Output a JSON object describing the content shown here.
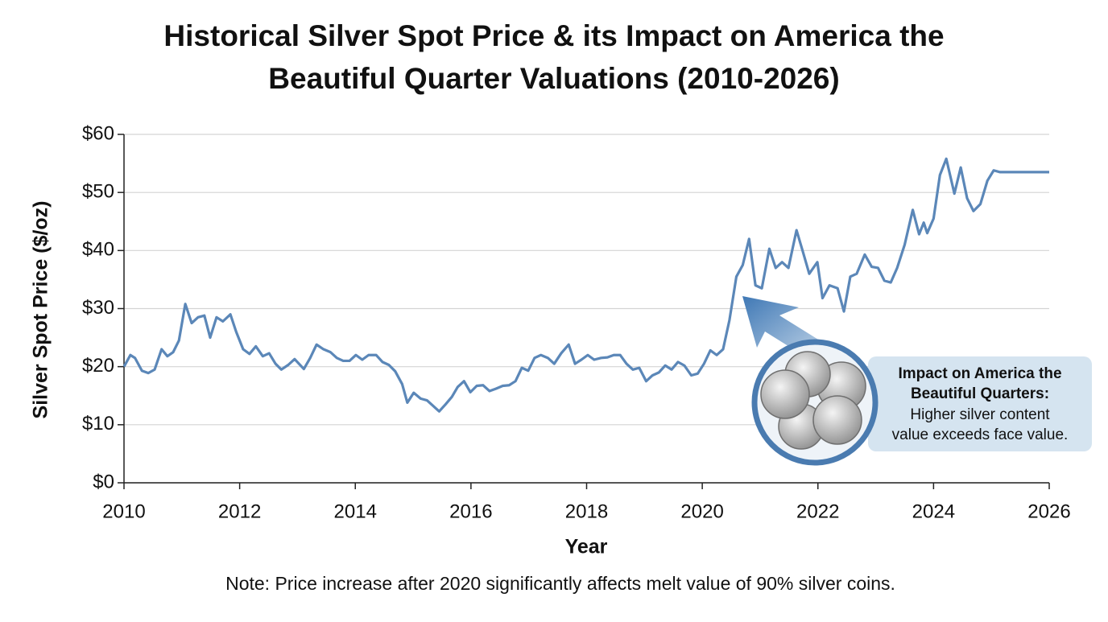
{
  "chart_data": {
    "type": "line",
    "title": [
      "Historical Silver Spot Price & its Impact on America the",
      "Beautiful Quarter Valuations (2010-2026)"
    ],
    "xlabel": "Year",
    "ylabel": "Silver Spot Price ($/oz)",
    "note": "Note: Price increase after 2020 significantly affects melt value of 90% silver coins.",
    "color": "#5b87b8",
    "grid": true,
    "xlim": [
      2010,
      2026
    ],
    "xticks": [
      2010,
      2012,
      2014,
      2016,
      2018,
      2020,
      2022,
      2024,
      2026
    ],
    "ylim": [
      0,
      60
    ],
    "yticks": [
      {
        "value": 0,
        "label": "$0"
      },
      {
        "value": 10,
        "label": "$10"
      },
      {
        "value": 20,
        "label": "$20"
      },
      {
        "value": 30,
        "label": "$30"
      },
      {
        "value": 40,
        "label": "$40"
      },
      {
        "value": 50,
        "label": "$50"
      },
      {
        "value": 60,
        "label": "$60"
      }
    ],
    "x": [
      2010.0,
      2010.11,
      2010.19,
      2010.31,
      2010.42,
      2010.53,
      2010.65,
      2010.75,
      2010.85,
      2010.95,
      2011.06,
      2011.17,
      2011.28,
      2011.39,
      2011.49,
      2011.6,
      2011.71,
      2011.84,
      2011.94,
      2012.06,
      2012.17,
      2012.28,
      2012.4,
      2012.51,
      2012.62,
      2012.72,
      2012.84,
      2012.95,
      2013.11,
      2013.22,
      2013.33,
      2013.45,
      2013.57,
      2013.68,
      2013.79,
      2013.9,
      2014.01,
      2014.12,
      2014.23,
      2014.36,
      2014.47,
      2014.58,
      2014.69,
      2014.81,
      2014.9,
      2015.01,
      2015.13,
      2015.24,
      2015.35,
      2015.45,
      2015.56,
      2015.67,
      2015.77,
      2015.88,
      2015.99,
      2016.1,
      2016.21,
      2016.32,
      2016.43,
      2016.55,
      2016.66,
      2016.77,
      2016.88,
      2016.99,
      2017.1,
      2017.21,
      2017.33,
      2017.44,
      2017.56,
      2017.69,
      2017.8,
      2017.91,
      2018.02,
      2018.13,
      2018.25,
      2018.36,
      2018.47,
      2018.58,
      2018.69,
      2018.8,
      2018.91,
      2019.03,
      2019.14,
      2019.25,
      2019.36,
      2019.47,
      2019.58,
      2019.69,
      2019.81,
      2019.92,
      2020.03,
      2020.14,
      2020.25,
      2020.36,
      2020.47,
      2020.59,
      2020.7,
      2020.81,
      2020.92,
      2021.03,
      2021.16,
      2021.27,
      2021.38,
      2021.49,
      2021.63,
      2021.74,
      2021.85,
      2021.99,
      2022.08,
      2022.2,
      2022.34,
      2022.45,
      2022.56,
      2022.67,
      2022.81,
      2022.93,
      2023.04,
      2023.15,
      2023.26,
      2023.37,
      2023.5,
      2023.64,
      2023.75,
      2023.83,
      2023.89,
      2024.0,
      2024.11,
      2024.22,
      2024.36,
      2024.47,
      2024.58,
      2024.69,
      2024.81,
      2024.93,
      2025.04,
      2025.15,
      2026.0
    ],
    "values": [
      20,
      22,
      21.5,
      19.3,
      18.9,
      19.5,
      23,
      21.8,
      22.5,
      24.5,
      30.8,
      27.5,
      28.5,
      28.8,
      25,
      28.5,
      27.8,
      29,
      26,
      23,
      22.2,
      23.5,
      21.8,
      22.3,
      20.5,
      19.5,
      20.3,
      21.3,
      19.6,
      21.5,
      23.8,
      23,
      22.5,
      21.5,
      21,
      21,
      22,
      21.2,
      22,
      22,
      20.8,
      20.3,
      19.2,
      17,
      13.8,
      15.5,
      14.5,
      14.2,
      13.2,
      12.3,
      13.5,
      14.8,
      16.5,
      17.5,
      15.6,
      16.7,
      16.8,
      15.8,
      16.2,
      16.7,
      16.8,
      17.5,
      19.8,
      19.3,
      21.5,
      22,
      21.5,
      20.5,
      22.3,
      23.8,
      20.5,
      21.2,
      22,
      21.2,
      21.5,
      21.6,
      22,
      22,
      20.5,
      19.5,
      19.8,
      17.5,
      18.5,
      19,
      20.2,
      19.5,
      20.8,
      20.2,
      18.5,
      18.8,
      20.5,
      22.8,
      22,
      23,
      28,
      35.5,
      37.5,
      42,
      34,
      33.5,
      40.3,
      37,
      38,
      37,
      43.5,
      39.8,
      36,
      38,
      31.8,
      34,
      33.5,
      29.5,
      35.5,
      36,
      39.3,
      37.2,
      37,
      34.8,
      34.5,
      37,
      41,
      47,
      42.8,
      44.8,
      43,
      45.5,
      53,
      55.8,
      49.8,
      54.3,
      49,
      46.8,
      48,
      52,
      53.8,
      53.5,
      53.5
    ],
    "annotation": {
      "title": [
        "Impact on America the",
        "Beautiful Quarters:"
      ],
      "text": [
        "Higher silver content",
        "value exceeds face value."
      ]
    }
  }
}
